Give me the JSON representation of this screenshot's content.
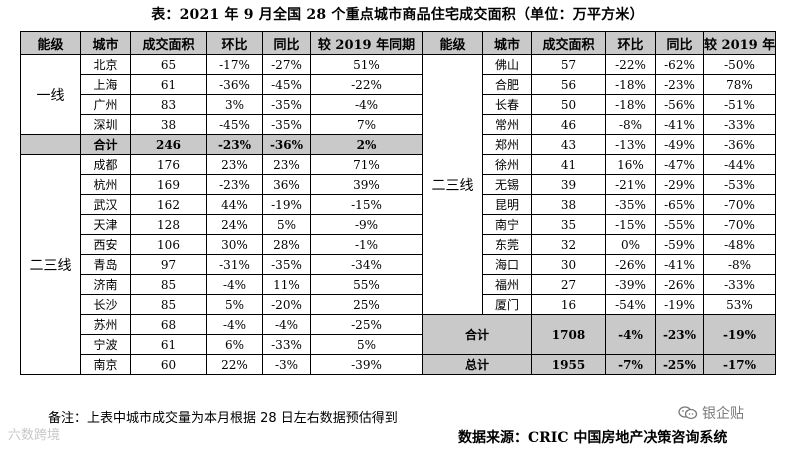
{
  "title": "表：2021 年 9 月全国 28 个重点城市商品住宅成交面积（单位：万平方米）",
  "headers": [
    "能级",
    "城市",
    "成交面积",
    "环比",
    "同比",
    "较 2019 年同期"
  ],
  "left": {
    "tier1": {
      "label": "一线",
      "rows": [
        {
          "city": "北京",
          "area": "65",
          "mom": "-17%",
          "yoy": "-27%",
          "vs2019": "51%"
        },
        {
          "city": "上海",
          "area": "61",
          "mom": "-36%",
          "yoy": "-45%",
          "vs2019": "-22%"
        },
        {
          "city": "广州",
          "area": "83",
          "mom": "3%",
          "yoy": "-35%",
          "vs2019": "-4%"
        },
        {
          "city": "深圳",
          "area": "38",
          "mom": "-45%",
          "yoy": "-35%",
          "vs2019": "7%"
        }
      ],
      "subtotal": {
        "label": "合计",
        "area": "246",
        "mom": "-23%",
        "yoy": "-36%",
        "vs2019": "2%"
      }
    },
    "tier23": {
      "label": "二三线",
      "rows": [
        {
          "city": "成都",
          "area": "176",
          "mom": "23%",
          "yoy": "23%",
          "vs2019": "71%"
        },
        {
          "city": "杭州",
          "area": "169",
          "mom": "-23%",
          "yoy": "36%",
          "vs2019": "39%"
        },
        {
          "city": "武汉",
          "area": "162",
          "mom": "44%",
          "yoy": "-19%",
          "vs2019": "-15%"
        },
        {
          "city": "天津",
          "area": "128",
          "mom": "24%",
          "yoy": "5%",
          "vs2019": "-9%"
        },
        {
          "city": "西安",
          "area": "106",
          "mom": "30%",
          "yoy": "28%",
          "vs2019": "-1%"
        },
        {
          "city": "青岛",
          "area": "97",
          "mom": "-31%",
          "yoy": "-35%",
          "vs2019": "-34%"
        },
        {
          "city": "济南",
          "area": "85",
          "mom": "-4%",
          "yoy": "11%",
          "vs2019": "55%"
        },
        {
          "city": "长沙",
          "area": "85",
          "mom": "5%",
          "yoy": "-20%",
          "vs2019": "25%"
        },
        {
          "city": "苏州",
          "area": "68",
          "mom": "-4%",
          "yoy": "-4%",
          "vs2019": "-25%"
        },
        {
          "city": "宁波",
          "area": "61",
          "mom": "6%",
          "yoy": "-33%",
          "vs2019": "5%"
        },
        {
          "city": "南京",
          "area": "60",
          "mom": "22%",
          "yoy": "-3%",
          "vs2019": "-39%"
        }
      ]
    }
  },
  "right": {
    "label": "二三线",
    "rows": [
      {
        "city": "佛山",
        "area": "57",
        "mom": "-22%",
        "yoy": "-62%",
        "vs2019": "-50%"
      },
      {
        "city": "合肥",
        "area": "56",
        "mom": "-18%",
        "yoy": "-23%",
        "vs2019": "78%"
      },
      {
        "city": "长春",
        "area": "50",
        "mom": "-18%",
        "yoy": "-56%",
        "vs2019": "-51%"
      },
      {
        "city": "常州",
        "area": "46",
        "mom": "-8%",
        "yoy": "-41%",
        "vs2019": "-33%"
      },
      {
        "city": "郑州",
        "area": "43",
        "mom": "-13%",
        "yoy": "-49%",
        "vs2019": "-36%"
      },
      {
        "city": "徐州",
        "area": "41",
        "mom": "16%",
        "yoy": "-47%",
        "vs2019": "-44%"
      },
      {
        "city": "无锡",
        "area": "39",
        "mom": "-21%",
        "yoy": "-29%",
        "vs2019": "-53%"
      },
      {
        "city": "昆明",
        "area": "38",
        "mom": "-35%",
        "yoy": "-65%",
        "vs2019": "-70%"
      },
      {
        "city": "南宁",
        "area": "35",
        "mom": "-15%",
        "yoy": "-55%",
        "vs2019": "-70%"
      },
      {
        "city": "东莞",
        "area": "32",
        "mom": "0%",
        "yoy": "-59%",
        "vs2019": "-48%"
      },
      {
        "city": "海口",
        "area": "30",
        "mom": "-26%",
        "yoy": "-41%",
        "vs2019": "-8%"
      },
      {
        "city": "福州",
        "area": "27",
        "mom": "-39%",
        "yoy": "-26%",
        "vs2019": "-33%"
      },
      {
        "city": "厦门",
        "area": "16",
        "mom": "-54%",
        "yoy": "-19%",
        "vs2019": "53%"
      }
    ],
    "subtotal": {
      "label": "合计",
      "area": "1708",
      "mom": "-4%",
      "yoy": "-23%",
      "vs2019": "-19%"
    },
    "total": {
      "label": "总计",
      "area": "1955",
      "mom": "-7%",
      "yoy": "-25%",
      "vs2019": "-17%"
    }
  },
  "note": "备注：上表中城市成交量为本月根据 28 日左右数据预估得到",
  "source": "数据来源：CRIC 中国房地产决策咨询系统",
  "watermark_left": "六数跨境",
  "watermark_right": "银企贴",
  "colors": {
    "header_bg": "#c9c9c9",
    "border": "#000000"
  }
}
